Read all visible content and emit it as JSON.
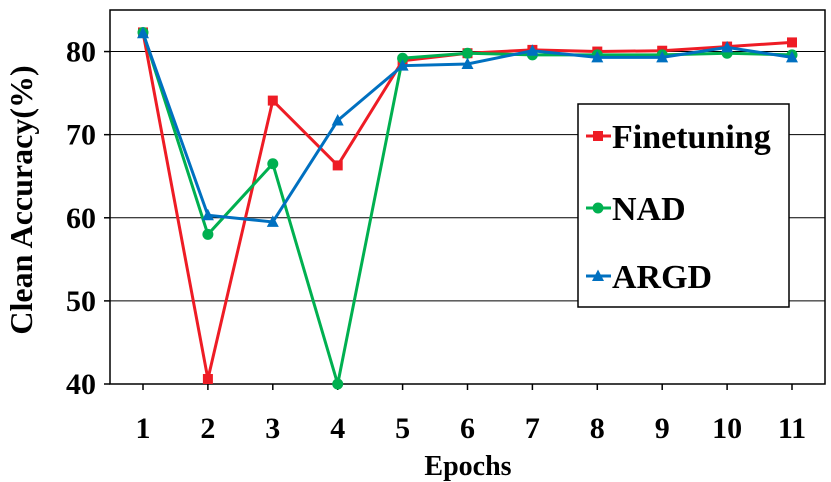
{
  "chart_data": {
    "type": "line",
    "xlabel": "Epochs",
    "ylabel": "Clean Accuracy(%)",
    "x": [
      1,
      2,
      3,
      4,
      5,
      6,
      7,
      8,
      9,
      10,
      11
    ],
    "ylim": [
      40,
      85
    ],
    "yticks": [
      40,
      50,
      60,
      70,
      80
    ],
    "grid": "horizontal",
    "legend_position": "right",
    "series": [
      {
        "name": "Finetuning",
        "color": "#ee1c25",
        "marker": "square",
        "values": [
          82.3,
          40.6,
          74.1,
          66.3,
          78.9,
          79.8,
          80.2,
          80.0,
          80.1,
          80.6,
          81.1
        ]
      },
      {
        "name": "NAD",
        "color": "#00b050",
        "marker": "circle",
        "values": [
          82.3,
          58.0,
          66.5,
          40.0,
          79.2,
          79.8,
          79.6,
          79.6,
          79.6,
          79.8,
          79.6
        ]
      },
      {
        "name": "ARGD",
        "color": "#0070c0",
        "marker": "triangle",
        "values": [
          82.2,
          60.3,
          59.5,
          71.7,
          78.3,
          78.5,
          80.1,
          79.3,
          79.3,
          80.5,
          79.3
        ]
      }
    ]
  }
}
